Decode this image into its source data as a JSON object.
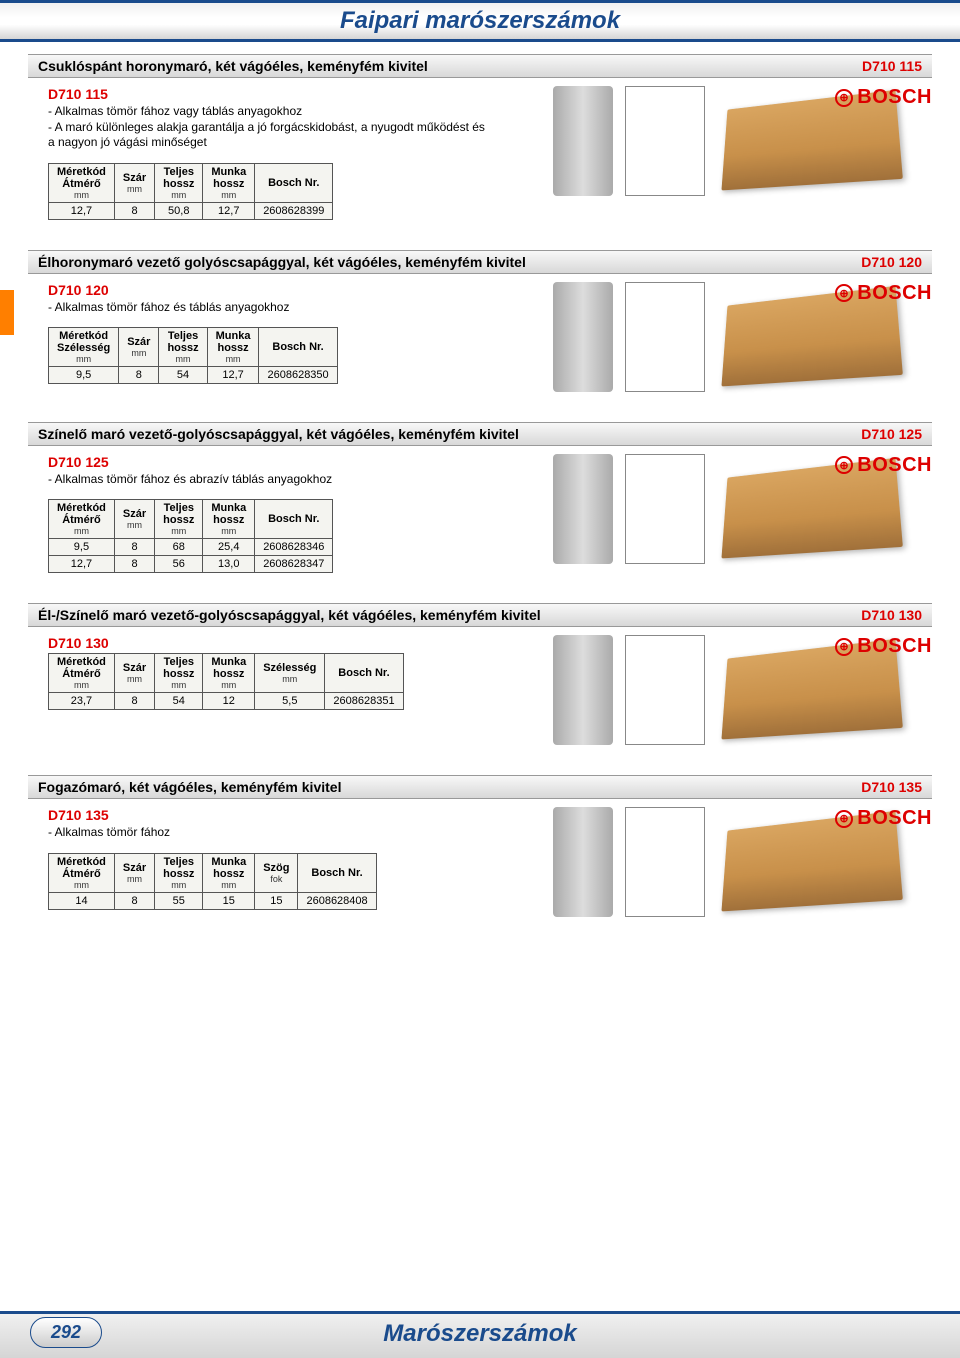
{
  "page": {
    "header_title": "Faipari marószerszámok",
    "footer_title": "Marószerszámok",
    "page_number": "292"
  },
  "brand_name": "BOSCH",
  "sections": [
    {
      "bar_title": "Csuklóspánt horonymaró, két vágóéles, keményfém kivitel",
      "bar_code": "D710 115",
      "detail_code": "D710 115",
      "description": "- Alkalmas tömör fához vagy táblás anyagokhoz\n- A maró különleges alakja garantálja a jó forgácskidobást, a nyugodt működést és a nagyon jó vágási minőséget",
      "table": {
        "headers": [
          "Méretkód\nÁtmérő",
          "Szár",
          "Teljes\nhossz",
          "Munka\nhossz",
          "Bosch Nr."
        ],
        "units": [
          "mm",
          "mm",
          "mm",
          "mm",
          ""
        ],
        "rows": [
          [
            "12,7",
            "8",
            "50,8",
            "12,7",
            "2608628399"
          ]
        ]
      }
    },
    {
      "bar_title": "Élhoronymaró vezető golyóscsapággyal, két vágóéles, keményfém kivitel",
      "bar_code": "D710 120",
      "detail_code": "D710 120",
      "description": "- Alkalmas tömör fához és táblás anyagokhoz",
      "table": {
        "headers": [
          "Méretkód\nSzélesség",
          "Szár",
          "Teljes\nhossz",
          "Munka\nhossz",
          "Bosch Nr."
        ],
        "units": [
          "mm",
          "mm",
          "mm",
          "mm",
          ""
        ],
        "rows": [
          [
            "9,5",
            "8",
            "54",
            "12,7",
            "2608628350"
          ]
        ]
      }
    },
    {
      "bar_title": "Színelő maró vezető-golyóscsapággyal, két vágóéles, keményfém kivitel",
      "bar_code": "D710 125",
      "detail_code": "D710 125",
      "description": "- Alkalmas tömör fához és abrazív táblás anyagokhoz",
      "table": {
        "headers": [
          "Méretkód\nÁtmérő",
          "Szár",
          "Teljes\nhossz",
          "Munka\nhossz",
          "Bosch Nr."
        ],
        "units": [
          "mm",
          "mm",
          "mm",
          "mm",
          ""
        ],
        "rows": [
          [
            "9,5",
            "8",
            "68",
            "25,4",
            "2608628346"
          ],
          [
            "12,7",
            "8",
            "56",
            "13,0",
            "2608628347"
          ]
        ]
      }
    },
    {
      "bar_title": "Él-/Színelő maró vezető-golyóscsapággyal, két vágóéles, keményfém kivitel",
      "bar_code": "D710 130",
      "detail_code": "D710 130",
      "description": "",
      "table": {
        "headers": [
          "Méretkód\nÁtmérő",
          "Szár",
          "Teljes\nhossz",
          "Munka\nhossz",
          "Szélesség",
          "Bosch Nr."
        ],
        "units": [
          "mm",
          "mm",
          "mm",
          "mm",
          "mm",
          ""
        ],
        "rows": [
          [
            "23,7",
            "8",
            "54",
            "12",
            "5,5",
            "2608628351"
          ]
        ]
      }
    },
    {
      "bar_title": "Fogazómaró, két vágóéles, keményfém kivitel",
      "bar_code": "D710 135",
      "detail_code": "D710 135",
      "description": "- Alkalmas tömör fához",
      "table": {
        "headers": [
          "Méretkód\nÁtmérő",
          "Szár",
          "Teljes\nhossz",
          "Munka\nhossz",
          "Szög",
          "Bosch Nr."
        ],
        "units": [
          "mm",
          "mm",
          "mm",
          "mm",
          "fok",
          ""
        ],
        "rows": [
          [
            "14",
            "8",
            "55",
            "15",
            "15",
            "2608628408"
          ]
        ]
      }
    }
  ],
  "styling": {
    "header_color": "#1a4b8c",
    "code_color": "#d00",
    "brand_color": "#d00",
    "tab_color": "#ff7f00",
    "table_bg": "#f4f4f0",
    "wood_gradient": [
      "#d9a560",
      "#c8904a",
      "#a0703a"
    ]
  }
}
